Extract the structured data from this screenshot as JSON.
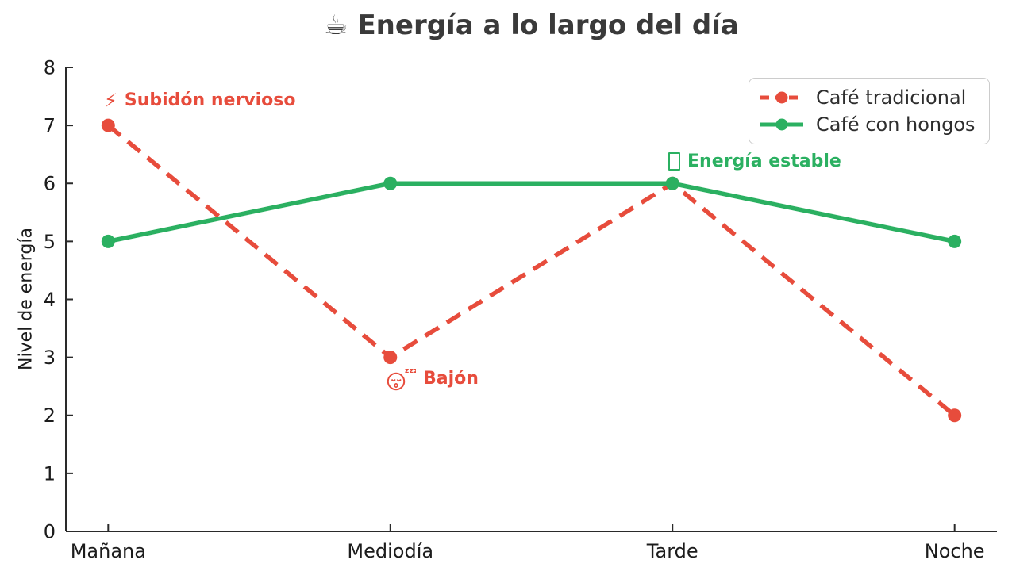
{
  "chart_data": {
    "type": "line",
    "title": "☕ Energía a lo largo del día",
    "xlabel": "",
    "ylabel": "Nivel de energía",
    "categories": [
      "Mañana",
      "Mediodía",
      "Tarde",
      "Noche"
    ],
    "series": [
      {
        "name": "Café tradicional",
        "values": [
          7,
          3,
          6,
          2
        ],
        "color": "#e74c3c",
        "style": "dashed",
        "marker": "circle"
      },
      {
        "name": "Café con hongos",
        "values": [
          5,
          6,
          6,
          5
        ],
        "color": "#2bb061",
        "style": "solid",
        "marker": "circle"
      }
    ],
    "ylim": [
      0,
      8
    ],
    "yticks": [
      0,
      1,
      2,
      3,
      4,
      5,
      6,
      7,
      8
    ],
    "grid": false,
    "legend_position": "upper right"
  },
  "annotations": [
    {
      "icon": "lightning-bolt",
      "icon_char": "⚡",
      "text": "Subidón nervioso",
      "color": "#e74c3c"
    },
    {
      "icon": "sleeping-face",
      "icon_char": "😴",
      "zzz": "zzz",
      "text": "Bajón",
      "color": "#e74c3c"
    },
    {
      "icon": "missing-glyph-box",
      "icon_char": "□",
      "text": "Energía estable",
      "color": "#2bb061"
    }
  ],
  "colors": {
    "traditional_coffee": "#e74c3c",
    "mushroom_coffee": "#2bb061",
    "axis": "#2a2a2a",
    "title": "#3a3a3a"
  }
}
